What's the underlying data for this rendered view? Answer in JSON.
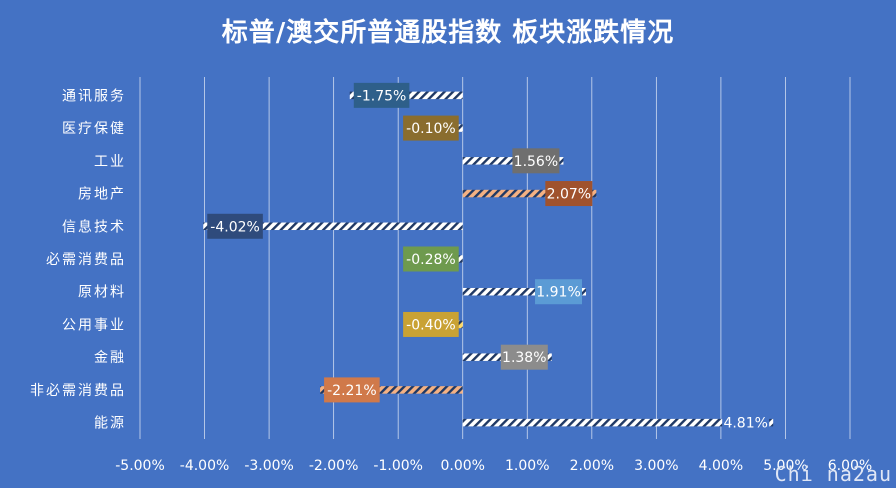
{
  "title": "标普/澳交所普通股指数 板块涨跌情况",
  "watermark": "Chi na2au",
  "chart_data": {
    "type": "bar",
    "orientation": "horizontal",
    "title": "标普/澳交所普通股指数 板块涨跌情况",
    "categories": [
      "通讯服务",
      "医疗保健",
      "工业",
      "房地产",
      "信息技术",
      "必需消费品",
      "原材料",
      "公用事业",
      "金融",
      "非必需消费品",
      "能源"
    ],
    "values": [
      -1.75,
      -0.1,
      1.56,
      2.07,
      -4.02,
      -0.28,
      1.91,
      -0.4,
      1.38,
      -2.21,
      4.81
    ],
    "labels": [
      "-1.75%",
      "-0.10%",
      "1.56%",
      "2.07%",
      "-4.02%",
      "-0.28%",
      "1.91%",
      "-0.40%",
      "1.38%",
      "-2.21%",
      "4.81%"
    ],
    "label_colors": [
      "#2E5F8A",
      "#8A6D2E",
      "#6F6F6F",
      "#A0522D",
      "#2F4B7C",
      "#6E9A4E",
      "#5B9BD5",
      "#C9A234",
      "#8C8C8C",
      "#D0794A",
      "#4472C4"
    ],
    "bar_fill_colors": [
      "#ffffff",
      "#ffffff",
      "#ffffff",
      "#F4B183",
      "#ffffff",
      "#ffffff",
      "#ffffff",
      "#FFD966",
      "#ffffff",
      "#F4B183",
      "#ffffff"
    ],
    "xlim": [
      -5,
      6
    ],
    "xticks": [
      "-5.00%",
      "-4.00%",
      "-3.00%",
      "-2.00%",
      "-1.00%",
      "0.00%",
      "1.00%",
      "2.00%",
      "3.00%",
      "4.00%",
      "5.00%",
      "6.00%"
    ],
    "grid": true,
    "legend": "none"
  }
}
